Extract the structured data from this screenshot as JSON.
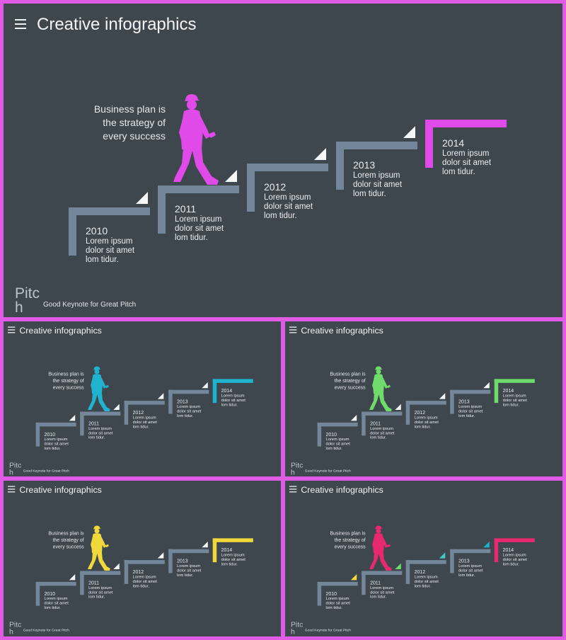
{
  "title": "Creative infographics",
  "tagline": "Business plan is the strategy of every success",
  "brand": {
    "name": "Pitch",
    "tag": "Good Keynote for Great Pitch"
  },
  "steps": [
    {
      "year": "2010",
      "text": "Lorem ipsum dolor sit amet lom tidur."
    },
    {
      "year": "2011",
      "text": "Lorem ipsum dolor sit amet lom tidur."
    },
    {
      "year": "2012",
      "text": "Lorem ipsum dolor sit amet lom tidur."
    },
    {
      "year": "2013",
      "text": "Lorem ipsum dolor sit amet lom tidur."
    },
    {
      "year": "2014",
      "text": "Lorem ipsum dolor sit amet lom tidur."
    }
  ],
  "icons": {
    "menu": "hamburger-menu-icon",
    "walker": "walking-worker-icon"
  },
  "colors": {
    "background": "#3f474e",
    "frame": "#e15ce6",
    "stair": "#74879a"
  },
  "variants": [
    {
      "accent": "#e04ae8",
      "triangles": [
        "#f4f6f7",
        "#f4f6f7",
        "#f4f6f7",
        "#f4f6f7"
      ]
    },
    {
      "accent": "#1fb3cf",
      "triangles": [
        "#f4f6f7",
        "#f4f6f7",
        "#f4f6f7",
        "#f4f6f7"
      ]
    },
    {
      "accent": "#6edb6a",
      "triangles": [
        "#f4f6f7",
        "#f4f6f7",
        "#f4f6f7",
        "#f4f6f7"
      ]
    },
    {
      "accent": "#f1d93c",
      "triangles": [
        "#f4f6f7",
        "#f4f6f7",
        "#f4f6f7",
        "#f4f6f7"
      ]
    },
    {
      "accent": "#e8296f",
      "triangles": [
        "#f1d93c",
        "#6edb6a",
        "#40c9c4",
        "#1fb3cf"
      ]
    }
  ]
}
